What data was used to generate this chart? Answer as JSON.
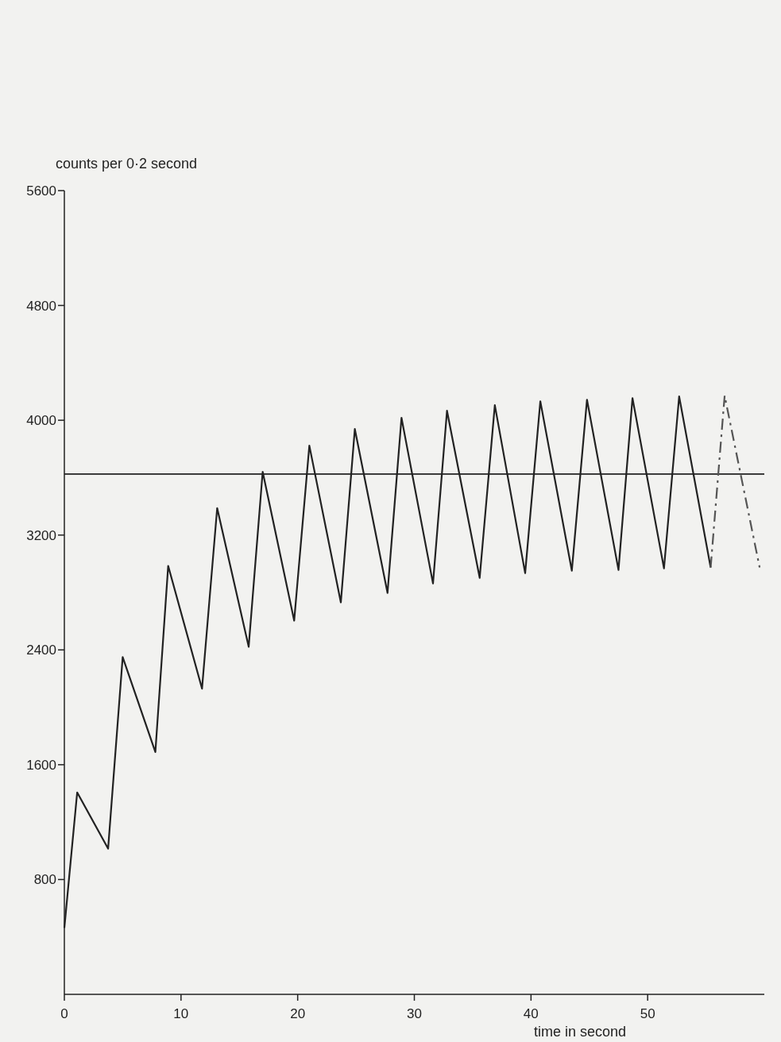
{
  "chart_data": {
    "type": "line",
    "ylabel": "counts per 0·2 second",
    "xlabel": "time in second",
    "xlim": [
      0,
      60
    ],
    "ylim": [
      0,
      5600
    ],
    "xticks": [
      0,
      10,
      20,
      30,
      40,
      50
    ],
    "yticks": [
      800,
      1600,
      2400,
      3200,
      4000,
      4800,
      5600
    ],
    "grid": false,
    "ref_lines": [
      {
        "axis": "y",
        "value": 3625,
        "color": "#222222"
      }
    ],
    "series": [
      {
        "color": "#222222",
        "line_style": "solid",
        "x": [
          0,
          1.1,
          3.75,
          5.0,
          7.8,
          8.9,
          11.8,
          13.1,
          15.8,
          17.0,
          19.7,
          21.0,
          23.7,
          24.9,
          27.7,
          28.9,
          31.6,
          32.8,
          35.6,
          36.9,
          39.5,
          40.8,
          43.5,
          44.8,
          47.5,
          48.7,
          51.4,
          52.7,
          55.4
        ],
        "values": [
          463,
          1407,
          1015,
          2350,
          1688,
          2985,
          2130,
          3388,
          2422,
          3641,
          2604,
          3823,
          2731,
          3939,
          2797,
          4017,
          2863,
          4066,
          2902,
          4105,
          2935,
          4132,
          2952,
          4143,
          2957,
          4154,
          2968,
          4166,
          2974
        ]
      },
      {
        "color": "#555555",
        "line_style": "dashed",
        "x": [
          55.4,
          56.6,
          59.6
        ],
        "values": [
          2974,
          4171,
          2974
        ]
      }
    ]
  }
}
